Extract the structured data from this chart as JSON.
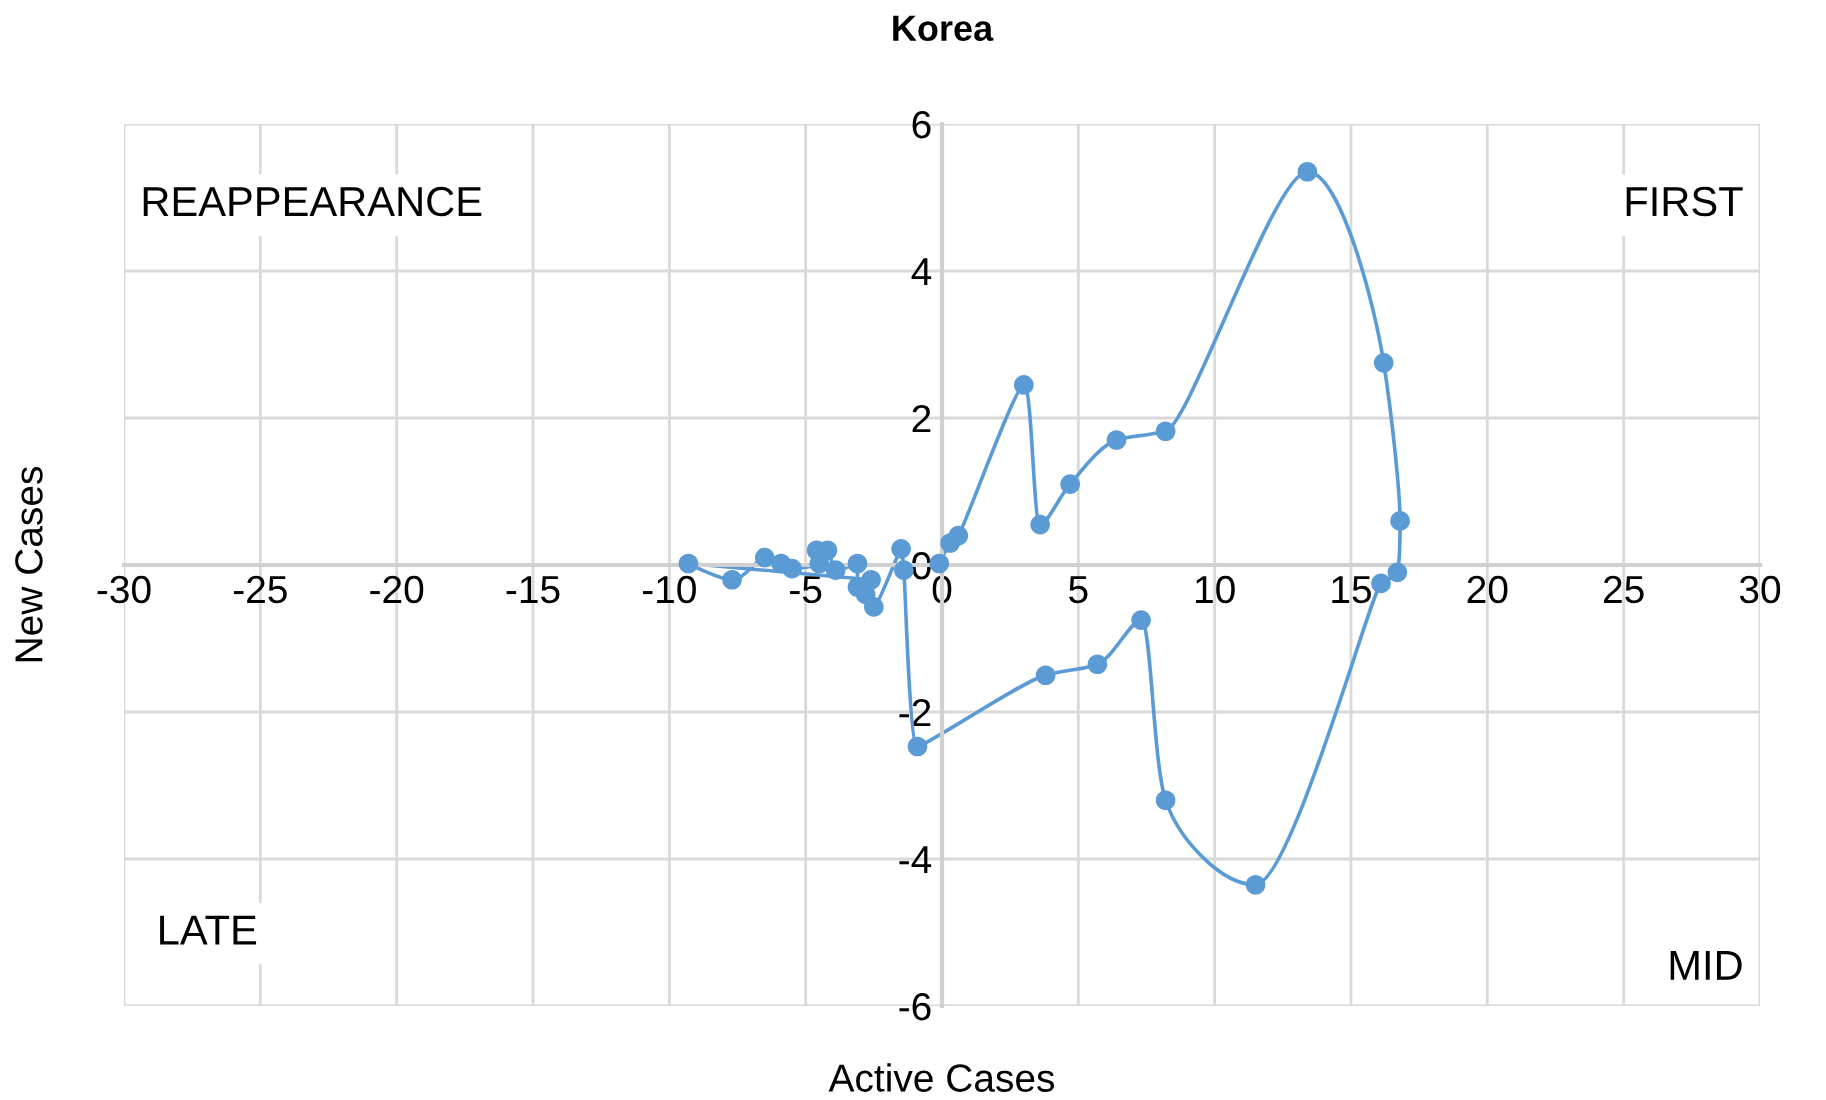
{
  "chart_data": {
    "type": "line",
    "title": "Korea",
    "xlabel": "Active Cases",
    "ylabel": "New Cases",
    "series": [
      {
        "color": "#5b9bd5",
        "x": [
          -0.1,
          0.3,
          0.6,
          3.0,
          3.6,
          4.7,
          6.4,
          8.2,
          13.4,
          16.2,
          16.8,
          16.7,
          16.1,
          11.5,
          8.2,
          7.3,
          5.7,
          3.8,
          -0.9,
          -1.4,
          -1.5,
          -2.5,
          -2.8,
          -3.1,
          -3.1,
          -3.9,
          -4.2,
          -4.6,
          -4.5,
          -5.5,
          -5.9,
          -6.5,
          -7.7,
          -9.3,
          -2.6
        ],
        "values": [
          0.02,
          0.3,
          0.4,
          2.45,
          0.55,
          1.1,
          1.7,
          1.82,
          5.35,
          2.75,
          0.6,
          -0.1,
          -0.25,
          -4.35,
          -3.2,
          -0.75,
          -1.35,
          -1.5,
          -2.47,
          -0.07,
          0.22,
          -0.57,
          -0.4,
          -0.3,
          0.02,
          -0.07,
          0.2,
          0.2,
          0.02,
          -0.05,
          0.02,
          0.1,
          -0.2,
          0.02,
          -0.2
        ]
      }
    ],
    "xlim": [
      -30,
      30
    ],
    "ylim": [
      -6,
      6
    ],
    "xticks": [
      -30,
      -25,
      -20,
      -15,
      -10,
      -5,
      0,
      5,
      10,
      15,
      20,
      25,
      30
    ],
    "yticks": [
      -6,
      -4,
      -2,
      0,
      2,
      4,
      6
    ],
    "grid": true,
    "marker": "circle",
    "line_style": "solid",
    "annotations": [
      "REAPPEARANCE",
      "FIRST",
      "LATE",
      "MID"
    ]
  }
}
